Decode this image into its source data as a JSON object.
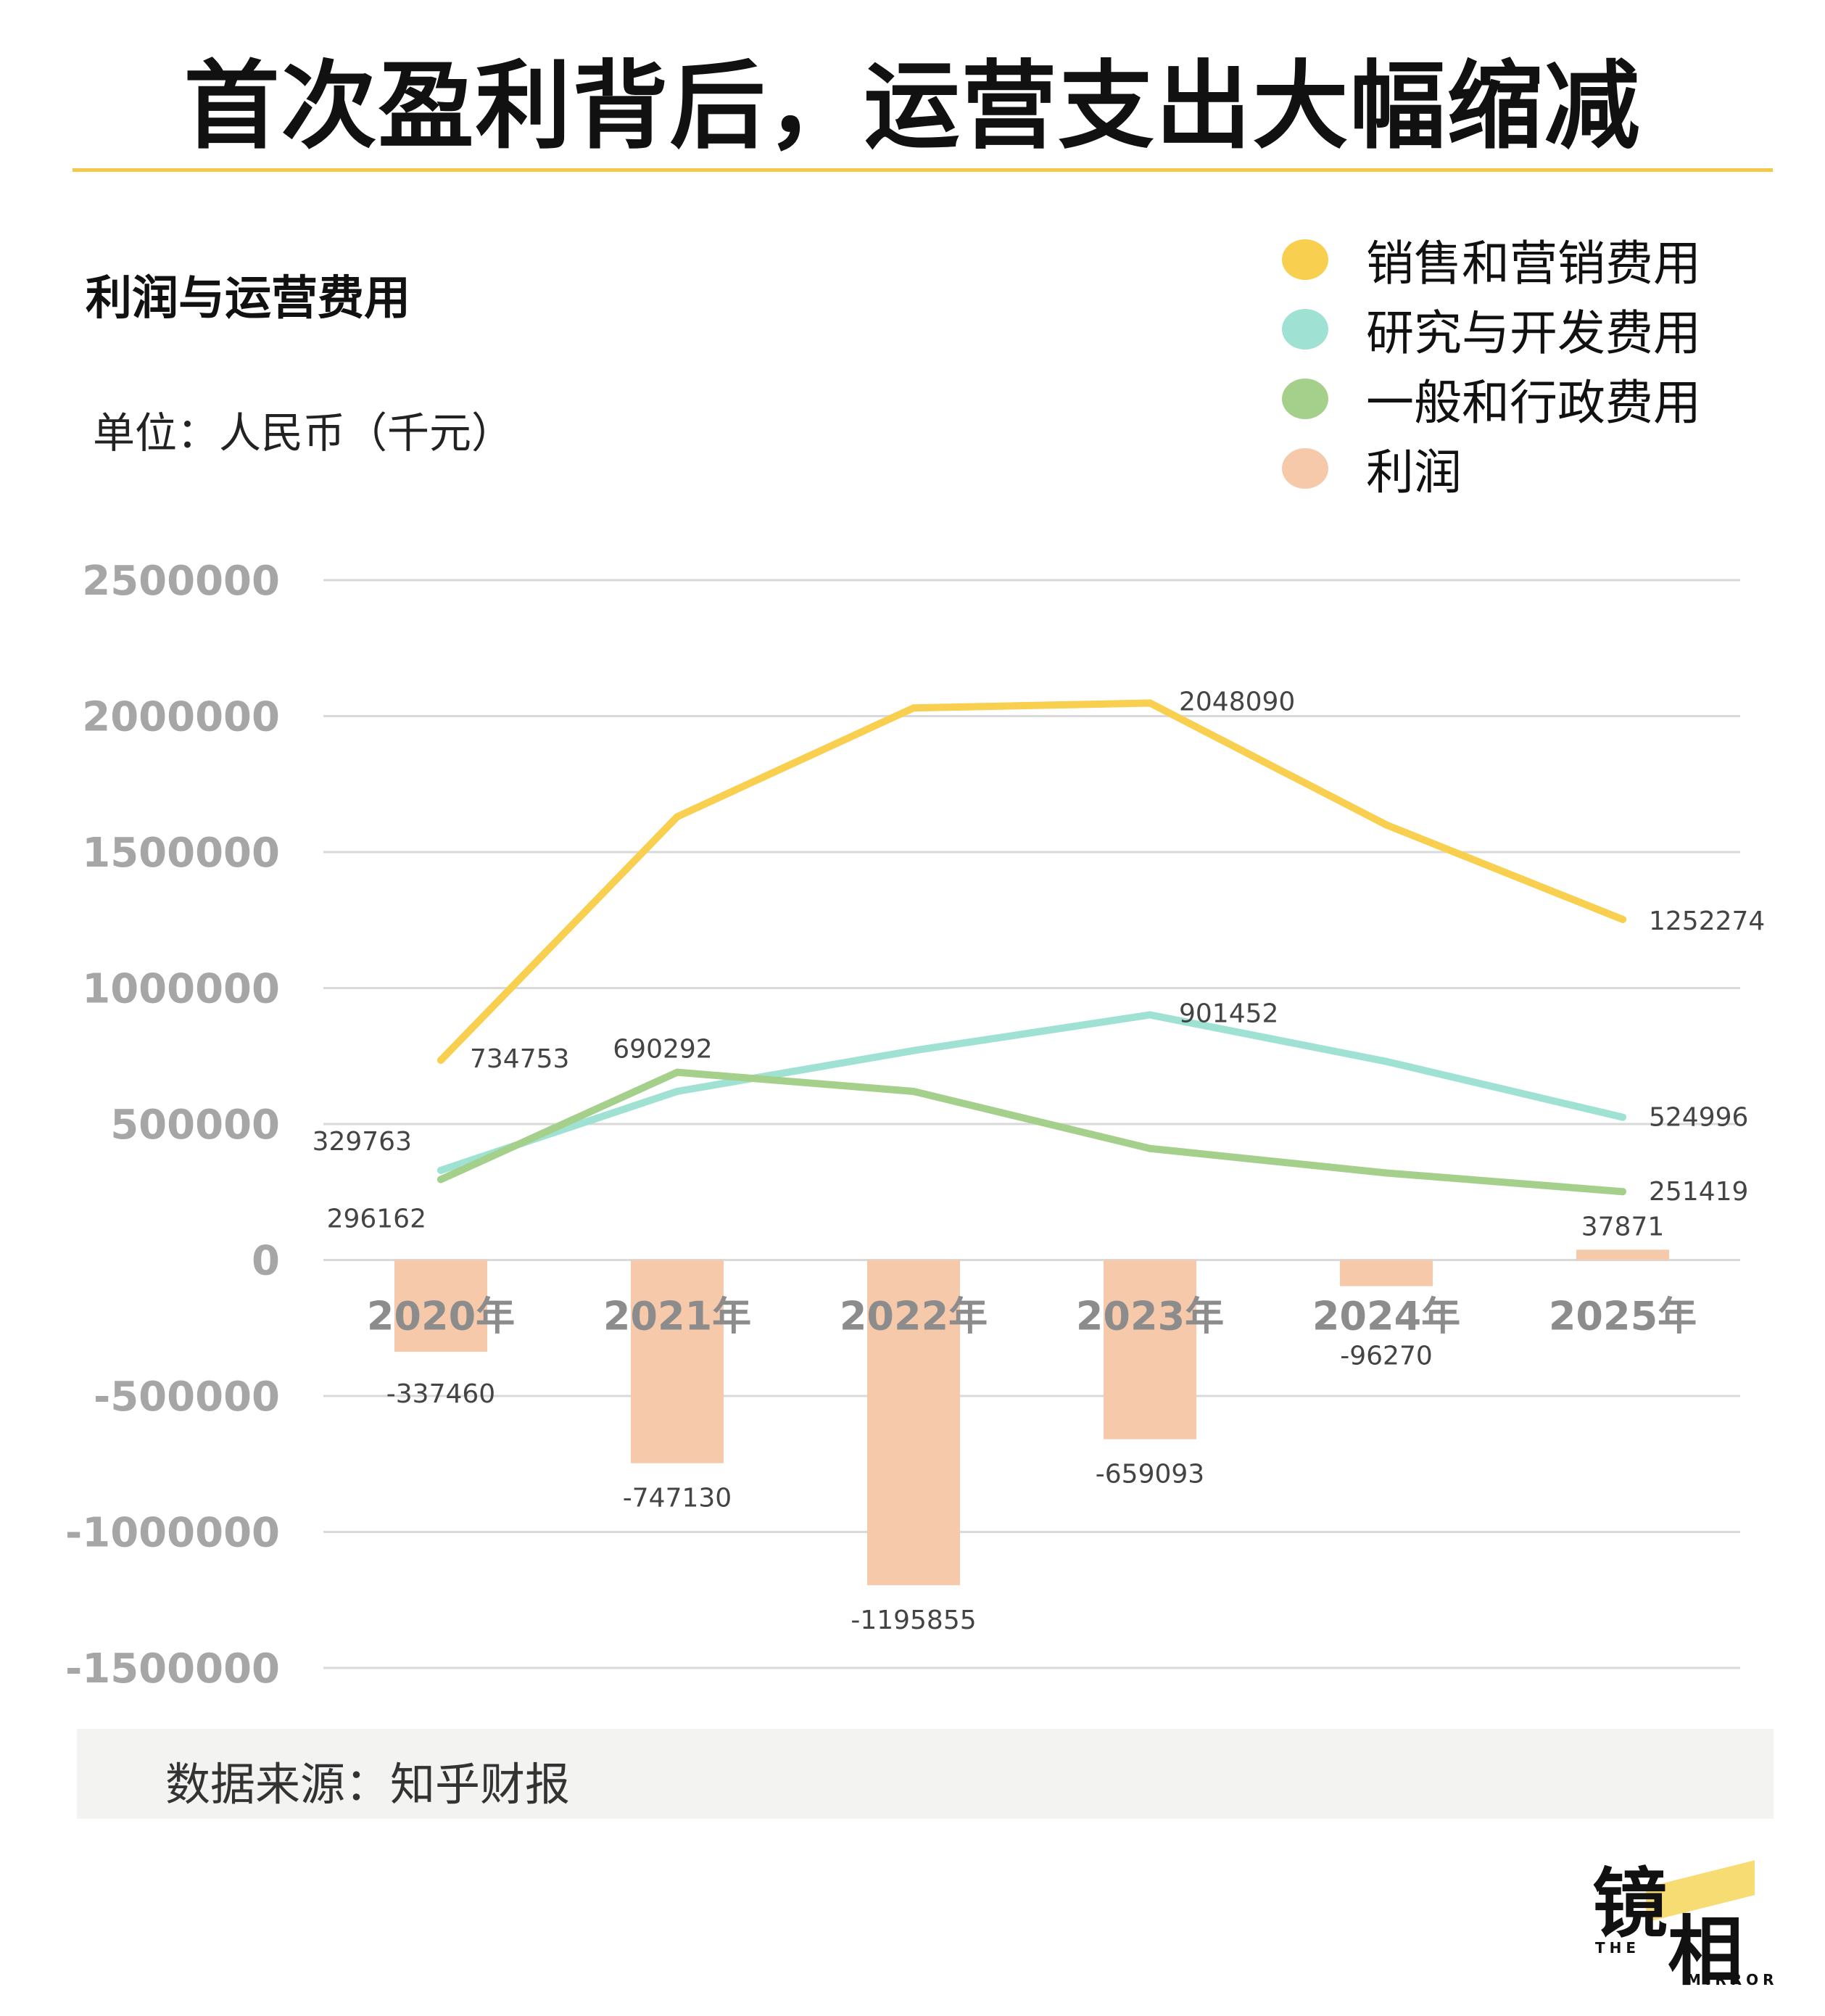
{
  "title": "首次盈利背后，运营支出大幅缩减",
  "subtitle": "利润与运营费用",
  "unit": "单位：人民币（千元）",
  "source": "数据来源：知乎财报",
  "logo": {
    "cn_1": "镜",
    "cn_2": "相",
    "en_1": "THE",
    "en_2": "MIRROR"
  },
  "colors": {
    "title_rule": "#f4c94a",
    "sales": "#f8cf4e",
    "rnd": "#9fe2d3",
    "admin": "#a5d08c",
    "profit": "#f6c9ab",
    "grid": "#d9d9d9",
    "axis_text": "#a6a6a6"
  },
  "chart_data": {
    "type": "bar+line",
    "title": "利润与运营费用",
    "categories": [
      "2020年",
      "2021年",
      "2022年",
      "2023年",
      "2024年",
      "2025年"
    ],
    "ylim": [
      -1500000,
      2500000
    ],
    "yticks": [
      2500000,
      2000000,
      1500000,
      1000000,
      500000,
      0,
      -500000,
      -1000000,
      -1500000
    ],
    "ytick_labels": [
      "2500000",
      "2000000",
      "1500000",
      "1000000",
      "500000",
      "0",
      "-500000",
      "-1000000",
      "-1500000"
    ],
    "grid": true,
    "legend_position": "top-right",
    "series": [
      {
        "name": "销售和营销费用",
        "type": "line",
        "color": "#f8cf4e",
        "values": [
          734753,
          1630000,
          2030000,
          2048090,
          1600000,
          1252274
        ],
        "labels": [
          "734753",
          "",
          "",
          "2048090",
          "",
          "1252274"
        ]
      },
      {
        "name": "研究与开发费用",
        "type": "line",
        "color": "#9fe2d3",
        "values": [
          329763,
          620000,
          770000,
          901452,
          730000,
          524996
        ],
        "labels": [
          "329763",
          "",
          "",
          "901452",
          "",
          "524996"
        ]
      },
      {
        "name": "一般和行政费用",
        "type": "line",
        "color": "#a5d08c",
        "values": [
          296162,
          690292,
          620000,
          410000,
          320000,
          251419
        ],
        "labels": [
          "296162",
          "690292",
          "",
          "",
          "",
          "251419"
        ]
      },
      {
        "name": "利润",
        "type": "bar",
        "color": "#f6c9ab",
        "values": [
          -337460,
          -747130,
          -1195855,
          -659093,
          -96270,
          37871
        ],
        "labels": [
          "-337460",
          "-747130",
          "-1195855",
          "-659093",
          "-96270",
          "37871"
        ]
      }
    ]
  }
}
